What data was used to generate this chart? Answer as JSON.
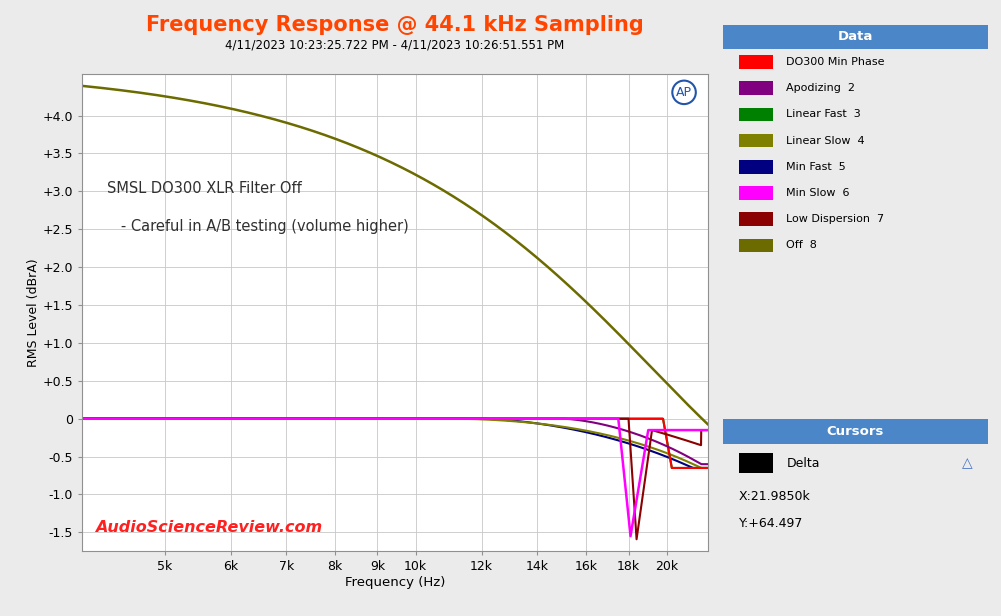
{
  "title": "Frequency Response @ 44.1 kHz Sampling",
  "subtitle": "4/11/2023 10:23:25.722 PM - 4/11/2023 10:26:51.551 PM",
  "xlabel": "Frequency (Hz)",
  "ylabel": "RMS Level (dBrA)",
  "annotation_line1": "SMSL DO300 XLR Filter Off",
  "annotation_line2": "   - Careful in A/B testing (volume higher)",
  "watermark": "AudioScienceReview.com",
  "ap_logo": "AP",
  "xmin": 3981,
  "xmax": 22400,
  "ymin": -1.75,
  "ymax": 4.55,
  "yticks": [
    -1.5,
    -1.0,
    -0.5,
    0,
    0.5,
    1.0,
    1.5,
    2.0,
    2.5,
    3.0,
    3.5,
    4.0
  ],
  "title_color": "#FF4500",
  "subtitle_color": "#000000",
  "background_color": "#EBEBEB",
  "plot_bg_color": "#FFFFFF",
  "grid_color": "#C8C8C8",
  "legend_entries": [
    {
      "label": "DO300 Min Phase",
      "color": "#FF0000"
    },
    {
      "label": "Apodizing  2",
      "color": "#800080"
    },
    {
      "label": "Linear Fast  3",
      "color": "#008000"
    },
    {
      "label": "Linear Slow  4",
      "color": "#808000"
    },
    {
      "label": "Min Fast  5",
      "color": "#000080"
    },
    {
      "label": "Min Slow  6",
      "color": "#FF00FF"
    },
    {
      "label": "Low Dispersion  7",
      "color": "#8B0000"
    },
    {
      "label": "Off  8",
      "color": "#6B6B00"
    }
  ],
  "cursor_x": "X:21.9850k",
  "cursor_y": "Y:+64.497",
  "watermark_color": "#FF2020",
  "title_fontsize": 15,
  "subtitle_fontsize": 8.5,
  "legend_header_color": "#4A86C8",
  "legend_bg_color": "#D8EAF8"
}
